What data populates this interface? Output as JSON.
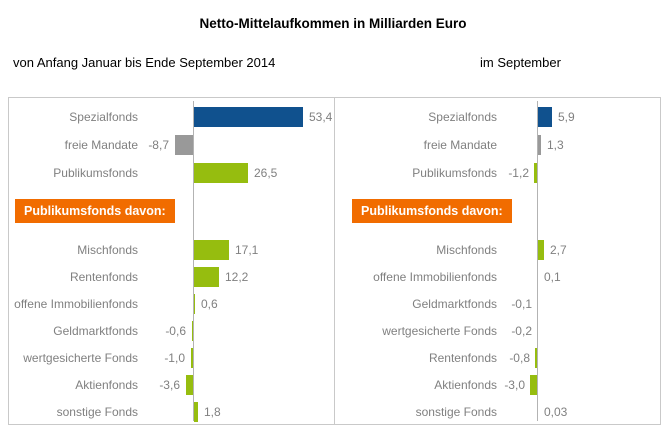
{
  "title": "Netto-Mittelaufkommen in Milliarden Euro",
  "colors": {
    "blue": "#10518e",
    "gray": "#999999",
    "green": "#96bd0f",
    "orange": "#f16c00",
    "label_gray": "#808080",
    "border_gray": "#c9c9c9"
  },
  "chart_data": [
    {
      "type": "bar",
      "orientation": "horizontal",
      "title": "von Anfang Januar bis Ende September 2014",
      "value_unit": "Milliarden Euro",
      "group_label": "Publikumsfonds davon:",
      "xlim": [
        -15,
        65
      ],
      "grid": false,
      "main": [
        {
          "label": "Spezialfonds",
          "value": 53.4,
          "display": "53,4",
          "color": "blue"
        },
        {
          "label": "freie Mandate",
          "value": -8.7,
          "display": "-8,7",
          "color": "gray"
        },
        {
          "label": "Publikumsfonds",
          "value": 26.5,
          "display": "26,5",
          "color": "green"
        }
      ],
      "breakdown": [
        {
          "label": "Mischfonds",
          "value": 17.1,
          "display": "17,1",
          "color": "green"
        },
        {
          "label": "Rentenfonds",
          "value": 12.2,
          "display": "12,2",
          "color": "green"
        },
        {
          "label": "offene Immobilienfonds",
          "value": 0.6,
          "display": "0,6",
          "color": "green"
        },
        {
          "label": "Geldmarktfonds",
          "value": -0.6,
          "display": "-0,6",
          "color": "green"
        },
        {
          "label": "wertgesicherte Fonds",
          "value": -1.0,
          "display": "-1,0",
          "color": "green"
        },
        {
          "label": "Aktienfonds",
          "value": -3.6,
          "display": "-3,6",
          "color": "green"
        },
        {
          "label": "sonstige Fonds",
          "value": 1.8,
          "display": "1,8",
          "color": "green"
        }
      ]
    },
    {
      "type": "bar",
      "orientation": "horizontal",
      "title": "im September",
      "value_unit": "Milliarden Euro",
      "group_label": "Publikumsfonds davon:",
      "xlim": [
        -5,
        8
      ],
      "grid": false,
      "main": [
        {
          "label": "Spezialfonds",
          "value": 5.9,
          "display": "5,9",
          "color": "blue"
        },
        {
          "label": "freie Mandate",
          "value": 1.3,
          "display": "1,3",
          "color": "gray"
        },
        {
          "label": "Publikumsfonds",
          "value": -1.2,
          "display": "-1,2",
          "color": "green"
        }
      ],
      "breakdown": [
        {
          "label": "Mischfonds",
          "value": 2.7,
          "display": "2,7",
          "color": "green"
        },
        {
          "label": "offene Immobilienfonds",
          "value": 0.1,
          "display": "0,1",
          "color": "green"
        },
        {
          "label": "Geldmarktfonds",
          "value": -0.1,
          "display": "-0,1",
          "color": "green"
        },
        {
          "label": "wertgesicherte Fonds",
          "value": -0.2,
          "display": "-0,2",
          "color": "green"
        },
        {
          "label": "Rentenfonds",
          "value": -0.8,
          "display": "-0,8",
          "color": "green"
        },
        {
          "label": "Aktienfonds",
          "value": -3.0,
          "display": "-3,0",
          "color": "green"
        },
        {
          "label": "sonstige Fonds",
          "value": 0.03,
          "display": "0,03",
          "color": "green"
        }
      ]
    }
  ]
}
